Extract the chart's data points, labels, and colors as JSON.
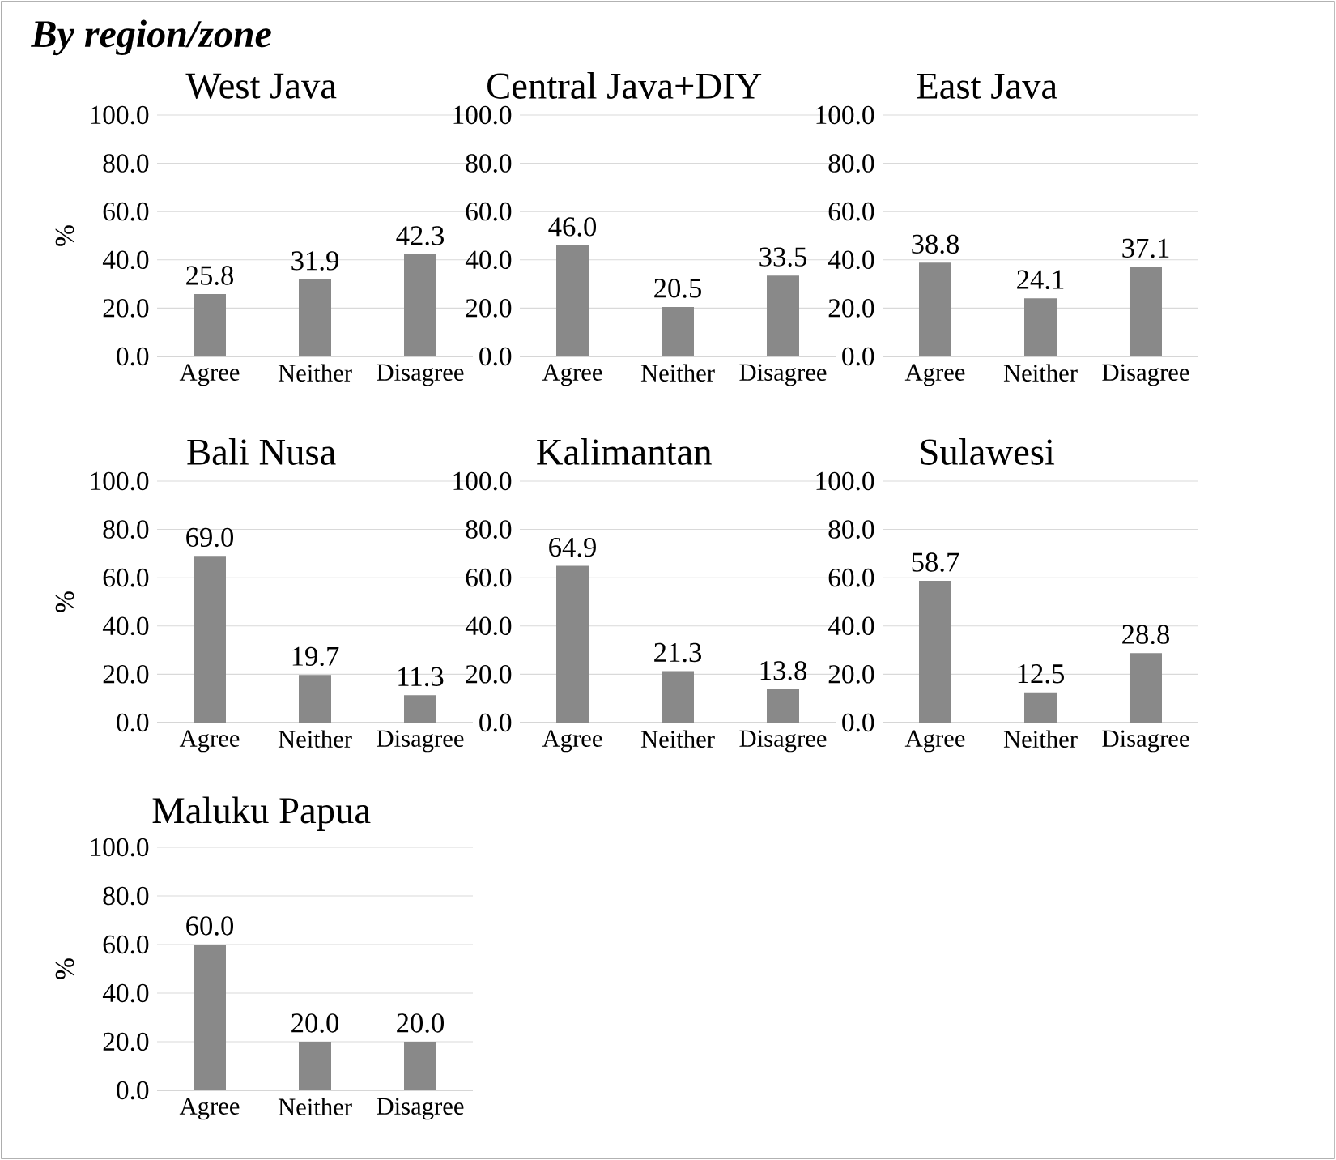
{
  "chart_data": [
    {
      "type": "other",
      "title": "By region/zone"
    },
    {
      "type": "bar",
      "title": "West Java",
      "ylabel": "%",
      "categories": [
        "Agree",
        "Neither",
        "Disagree"
      ],
      "values": [
        25.8,
        31.9,
        42.3
      ],
      "color": "#898989",
      "ylim": [
        0,
        100
      ],
      "yticks": [
        {
          "value": 0,
          "label": "0.0"
        },
        {
          "value": 20,
          "label": "20.0"
        },
        {
          "value": 40,
          "label": "40.0"
        },
        {
          "value": 60,
          "label": "60.0"
        },
        {
          "value": 80,
          "label": "80.0"
        },
        {
          "value": 100,
          "label": "100.0"
        }
      ],
      "grid": "y",
      "data_labels": true
    },
    {
      "type": "bar",
      "title": "Central Java+DIY",
      "categories": [
        "Agree",
        "Neither",
        "Disagree"
      ],
      "values": [
        46.0,
        20.5,
        33.5
      ],
      "value_labels": [
        "46.0",
        "20.5",
        "33.5"
      ],
      "color": "#898989",
      "ylim": [
        0,
        100
      ],
      "yticks": [
        {
          "value": 0,
          "label": "0.0"
        },
        {
          "value": 20,
          "label": "20.0"
        },
        {
          "value": 40,
          "label": "40.0"
        },
        {
          "value": 60,
          "label": "60.0"
        },
        {
          "value": 80,
          "label": "80.0"
        },
        {
          "value": 100,
          "label": "100.0"
        }
      ],
      "grid": "y"
    },
    {
      "type": "bar",
      "title": "East Java",
      "categories": [
        "Agree",
        "Neither",
        "Disagree"
      ],
      "values": [
        38.8,
        24.1,
        37.1
      ],
      "color": "#898989",
      "ylim": [
        0,
        100
      ],
      "yticks": [
        {
          "value": 0,
          "label": "0.0"
        },
        {
          "value": 20,
          "label": "20.0"
        },
        {
          "value": 40,
          "label": "40.0"
        },
        {
          "value": 60,
          "label": "60.0"
        },
        {
          "value": 80,
          "label": "80.0"
        },
        {
          "value": 100,
          "label": "100.0"
        }
      ],
      "grid": "y",
      "data_labels": true
    },
    {
      "type": "bar",
      "title": "Bali Nusa",
      "ylabel": "%",
      "categories": [
        "Agree",
        "Neither",
        "Disagree"
      ],
      "values": [
        69.0,
        19.7,
        11.3
      ],
      "value_labels": [
        "69.0",
        "19.7",
        "11.3"
      ],
      "color": "#898989",
      "ylim": [
        0,
        100
      ],
      "yticks": [
        {
          "value": 0,
          "label": "0.0"
        },
        {
          "value": 20,
          "label": "20.0"
        },
        {
          "value": 40,
          "label": "40.0"
        },
        {
          "value": 60,
          "label": "60.0"
        },
        {
          "value": 80,
          "label": "80.0"
        },
        {
          "value": 100,
          "label": "100.0"
        }
      ],
      "grid": "y"
    },
    {
      "type": "bar",
      "title": "Kalimantan",
      "categories": [
        "Agree",
        "Neither",
        "Disagree"
      ],
      "values": [
        64.9,
        21.3,
        13.8
      ],
      "color": "#898989",
      "ylim": [
        0,
        100
      ],
      "yticks": [
        {
          "value": 0,
          "label": "0.0"
        },
        {
          "value": 20,
          "label": "20.0"
        },
        {
          "value": 40,
          "label": "40.0"
        },
        {
          "value": 60,
          "label": "60.0"
        },
        {
          "value": 80,
          "label": "80.0"
        },
        {
          "value": 100,
          "label": "100.0"
        }
      ],
      "grid": "y",
      "data_labels": true
    },
    {
      "type": "bar",
      "title": "Sulawesi",
      "categories": [
        "Agree",
        "Neither",
        "Disagree"
      ],
      "values": [
        58.7,
        12.5,
        28.8
      ],
      "color": "#898989",
      "ylim": [
        0,
        100
      ],
      "yticks": [
        {
          "value": 0,
          "label": "0.0"
        },
        {
          "value": 20,
          "label": "20.0"
        },
        {
          "value": 40,
          "label": "40.0"
        },
        {
          "value": 60,
          "label": "60.0"
        },
        {
          "value": 80,
          "label": "80.0"
        },
        {
          "value": 100,
          "label": "100.0"
        }
      ],
      "grid": "y",
      "data_labels": true
    },
    {
      "type": "bar",
      "title": "Maluku Papua",
      "ylabel": "%",
      "categories": [
        "Agree",
        "Neither",
        "Disagree"
      ],
      "values": [
        60.0,
        20.0,
        20.0
      ],
      "value_labels": [
        "60.0",
        "20.0",
        "20.0"
      ],
      "color": "#898989",
      "ylim": [
        0,
        100
      ],
      "yticks": [
        {
          "value": 0,
          "label": "0.0"
        },
        {
          "value": 20,
          "label": "20.0"
        },
        {
          "value": 40,
          "label": "40.0"
        },
        {
          "value": 60,
          "label": "60.0"
        },
        {
          "value": 80,
          "label": "80.0"
        },
        {
          "value": 100,
          "label": "100.0"
        }
      ],
      "grid": "y"
    }
  ]
}
